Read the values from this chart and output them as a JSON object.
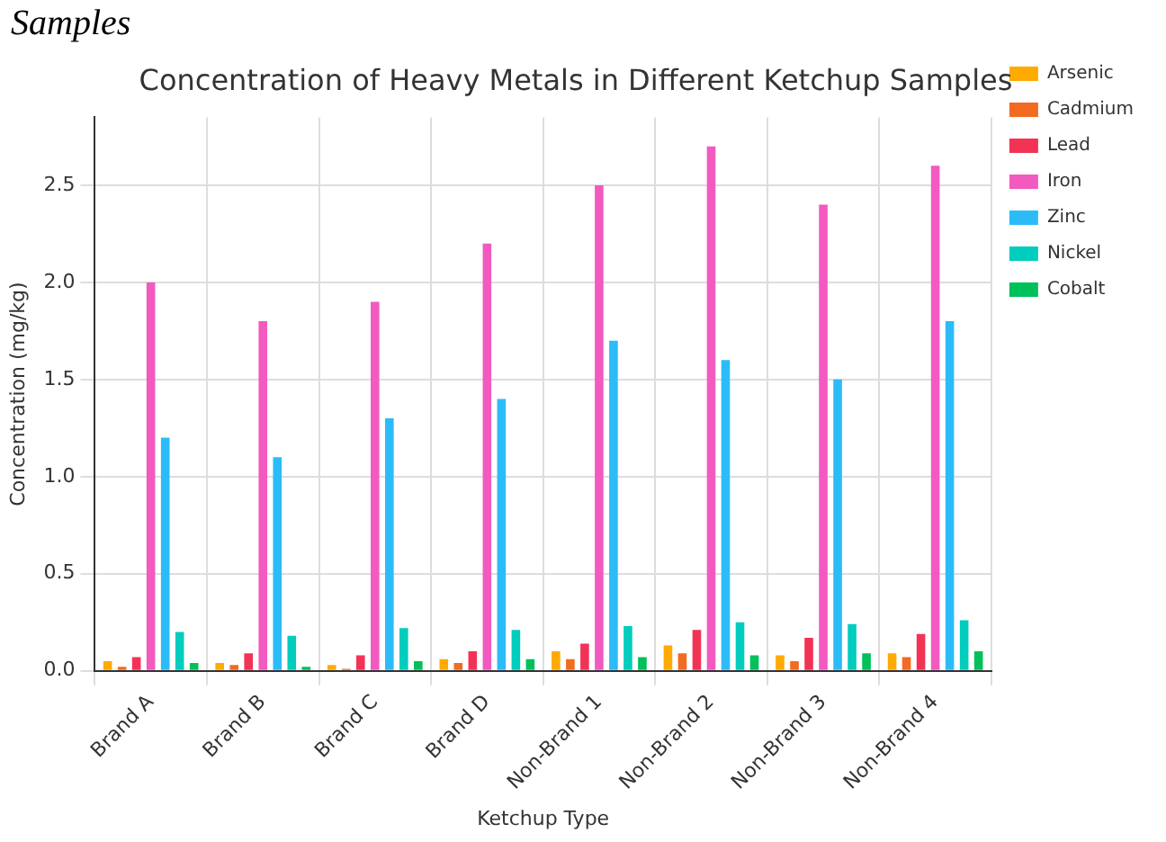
{
  "chart_data": {
    "type": "bar",
    "title": "Concentration of Heavy Metals in Different Ketchup Samples",
    "xlabel": "Ketchup Type",
    "ylabel": "Concentration (mg/kg)",
    "annotations": [
      "Samples"
    ],
    "categories": [
      "Brand A",
      "Brand B",
      "Brand C",
      "Brand D",
      "Non-Brand 1",
      "Non-Brand 2",
      "Non-Brand 3",
      "Non-Brand 4"
    ],
    "series": [
      {
        "name": "Arsenic",
        "color": "#ffaa00",
        "values": [
          0.05,
          0.04,
          0.03,
          0.06,
          0.1,
          0.13,
          0.08,
          0.09
        ]
      },
      {
        "name": "Cadmium",
        "color": "#f26b21",
        "values": [
          0.02,
          0.03,
          0.01,
          0.04,
          0.06,
          0.09,
          0.05,
          0.07
        ]
      },
      {
        "name": "Lead",
        "color": "#f23355",
        "values": [
          0.07,
          0.09,
          0.08,
          0.1,
          0.14,
          0.21,
          0.17,
          0.19
        ]
      },
      {
        "name": "Iron",
        "color": "#f25ac0",
        "values": [
          2.0,
          1.8,
          1.9,
          2.2,
          2.5,
          2.7,
          2.4,
          2.6
        ]
      },
      {
        "name": "Zinc",
        "color": "#2bbcf8",
        "values": [
          1.2,
          1.1,
          1.3,
          1.4,
          1.7,
          1.6,
          1.5,
          1.8
        ]
      },
      {
        "name": "Nickel",
        "color": "#00cdbd",
        "values": [
          0.2,
          0.18,
          0.22,
          0.21,
          0.23,
          0.25,
          0.24,
          0.26
        ]
      },
      {
        "name": "Cobalt",
        "color": "#00c05a",
        "values": [
          0.04,
          0.02,
          0.05,
          0.06,
          0.07,
          0.08,
          0.09,
          0.1
        ]
      }
    ],
    "ylim": [
      0,
      2.85
    ],
    "yticks": [
      {
        "value": 0,
        "label": "0.0"
      },
      {
        "value": 0.5,
        "label": "0.5"
      },
      {
        "value": 1,
        "label": "1.0"
      },
      {
        "value": 1.5,
        "label": "1.5"
      },
      {
        "value": 2,
        "label": "2.0"
      },
      {
        "value": 2.5,
        "label": "2.5"
      }
    ],
    "grid": true,
    "legend": "top right"
  }
}
